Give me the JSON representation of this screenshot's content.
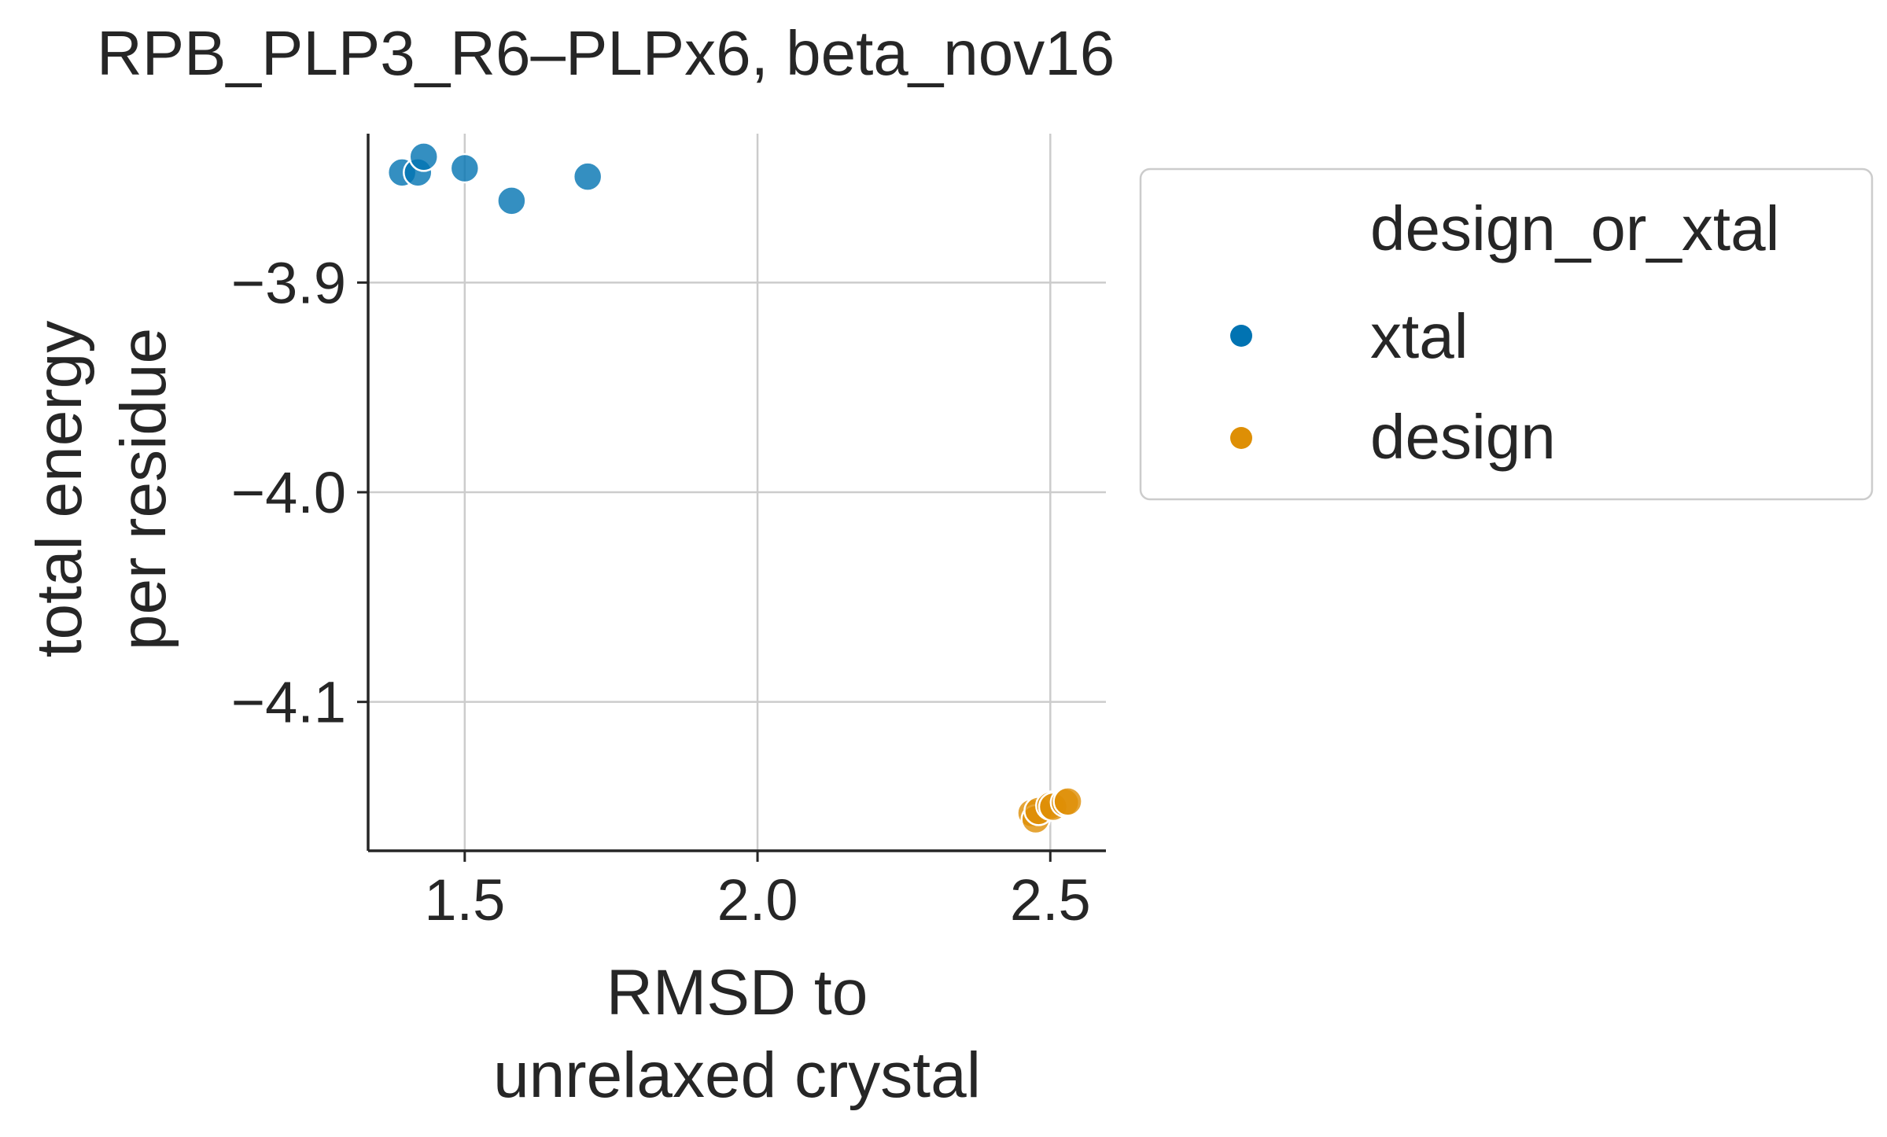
{
  "chart_data": {
    "type": "scatter",
    "title": "RPB_PLP3_R6–PLPx6, beta_nov16",
    "xlabel": [
      "RMSD to",
      "unrelaxed crystal"
    ],
    "ylabel": [
      "total energy",
      "per residue"
    ],
    "xlim": [
      1.335,
      2.595
    ],
    "ylim": [
      -4.171,
      -3.829
    ],
    "xticks": [
      1.5,
      2.0,
      2.5
    ],
    "xtick_labels": [
      "1.5",
      "2.0",
      "2.5"
    ],
    "yticks": [
      -3.9,
      -4.0,
      -4.1
    ],
    "ytick_labels": [
      "−3.9",
      "−4.0",
      "−4.1"
    ],
    "grid": true,
    "legend": {
      "title": "design_or_xtal",
      "placement": "outside-right-top"
    },
    "series": [
      {
        "name": "xtal",
        "color": "#0173b2",
        "points": [
          {
            "x": 1.393,
            "y": -3.8475
          },
          {
            "x": 1.42,
            "y": -3.8475
          },
          {
            "x": 1.43,
            "y": -3.84
          },
          {
            "x": 1.5,
            "y": -3.8455
          },
          {
            "x": 1.58,
            "y": -3.861
          },
          {
            "x": 1.71,
            "y": -3.8495
          }
        ]
      },
      {
        "name": "design",
        "color": "#de8f05",
        "points": [
          {
            "x": 2.468,
            "y": -4.153
          },
          {
            "x": 2.475,
            "y": -4.156
          },
          {
            "x": 2.48,
            "y": -4.152
          },
          {
            "x": 2.5,
            "y": -4.1495
          },
          {
            "x": 2.505,
            "y": -4.15
          },
          {
            "x": 2.525,
            "y": -4.148
          },
          {
            "x": 2.53,
            "y": -4.1475
          }
        ]
      }
    ]
  }
}
